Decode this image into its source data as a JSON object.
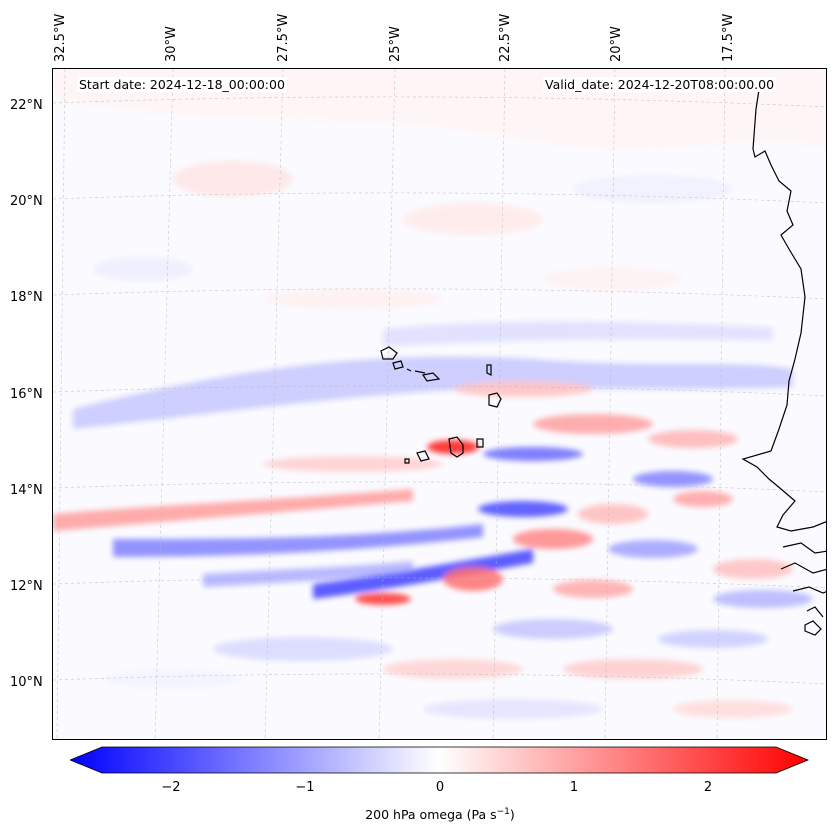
{
  "map": {
    "lon_ticks": [
      "32.5°W",
      "30°W",
      "27.5°W",
      "25°W",
      "22.5°W",
      "20°W",
      "17.5°W"
    ],
    "lat_ticks": [
      "22°N",
      "20°N",
      "18°N",
      "16°N",
      "14°N",
      "12°N",
      "10°N"
    ],
    "start_date": "Start date: 2024-12-18_00:00:00",
    "valid_date": "Valid_date: 2024-12-20T08:00:00.00"
  },
  "colorbar": {
    "ticks": [
      "−2",
      "−1",
      "0",
      "1",
      "2"
    ],
    "label_main": "200 hPa omega (Pa s",
    "label_sup": "−1",
    "label_end": ")",
    "colors": {
      "low": "#0000ff",
      "mid": "#ffffff",
      "high": "#ff0000"
    }
  }
}
